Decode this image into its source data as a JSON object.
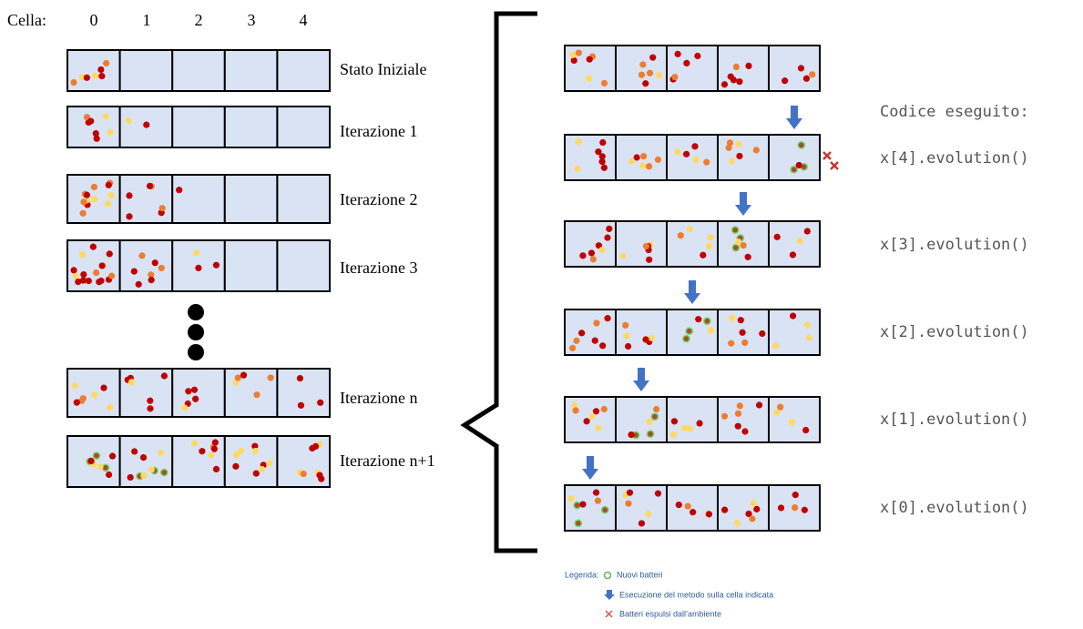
{
  "header": {
    "cell_label": "Cella:",
    "cell_indices": [
      "0",
      "1",
      "2",
      "3",
      "4"
    ]
  },
  "left_rows": [
    "Stato Iniziale",
    "Iterazione 1",
    "Iterazione 2",
    "Iterazione 3",
    "Iterazione n",
    "Iterazione n+1"
  ],
  "code": {
    "title": "Codice eseguito:",
    "lines": [
      "x[4].evolution()",
      "x[3].evolution()",
      "x[2].evolution()",
      "x[1].evolution()",
      "x[0].evolution()"
    ]
  },
  "legend": {
    "title": "Legenda:",
    "items": [
      "Nuovi batteri",
      "Esecuzione del metodo sulla cella indicata",
      "Batteri espulsi dall’ambiente"
    ]
  }
}
